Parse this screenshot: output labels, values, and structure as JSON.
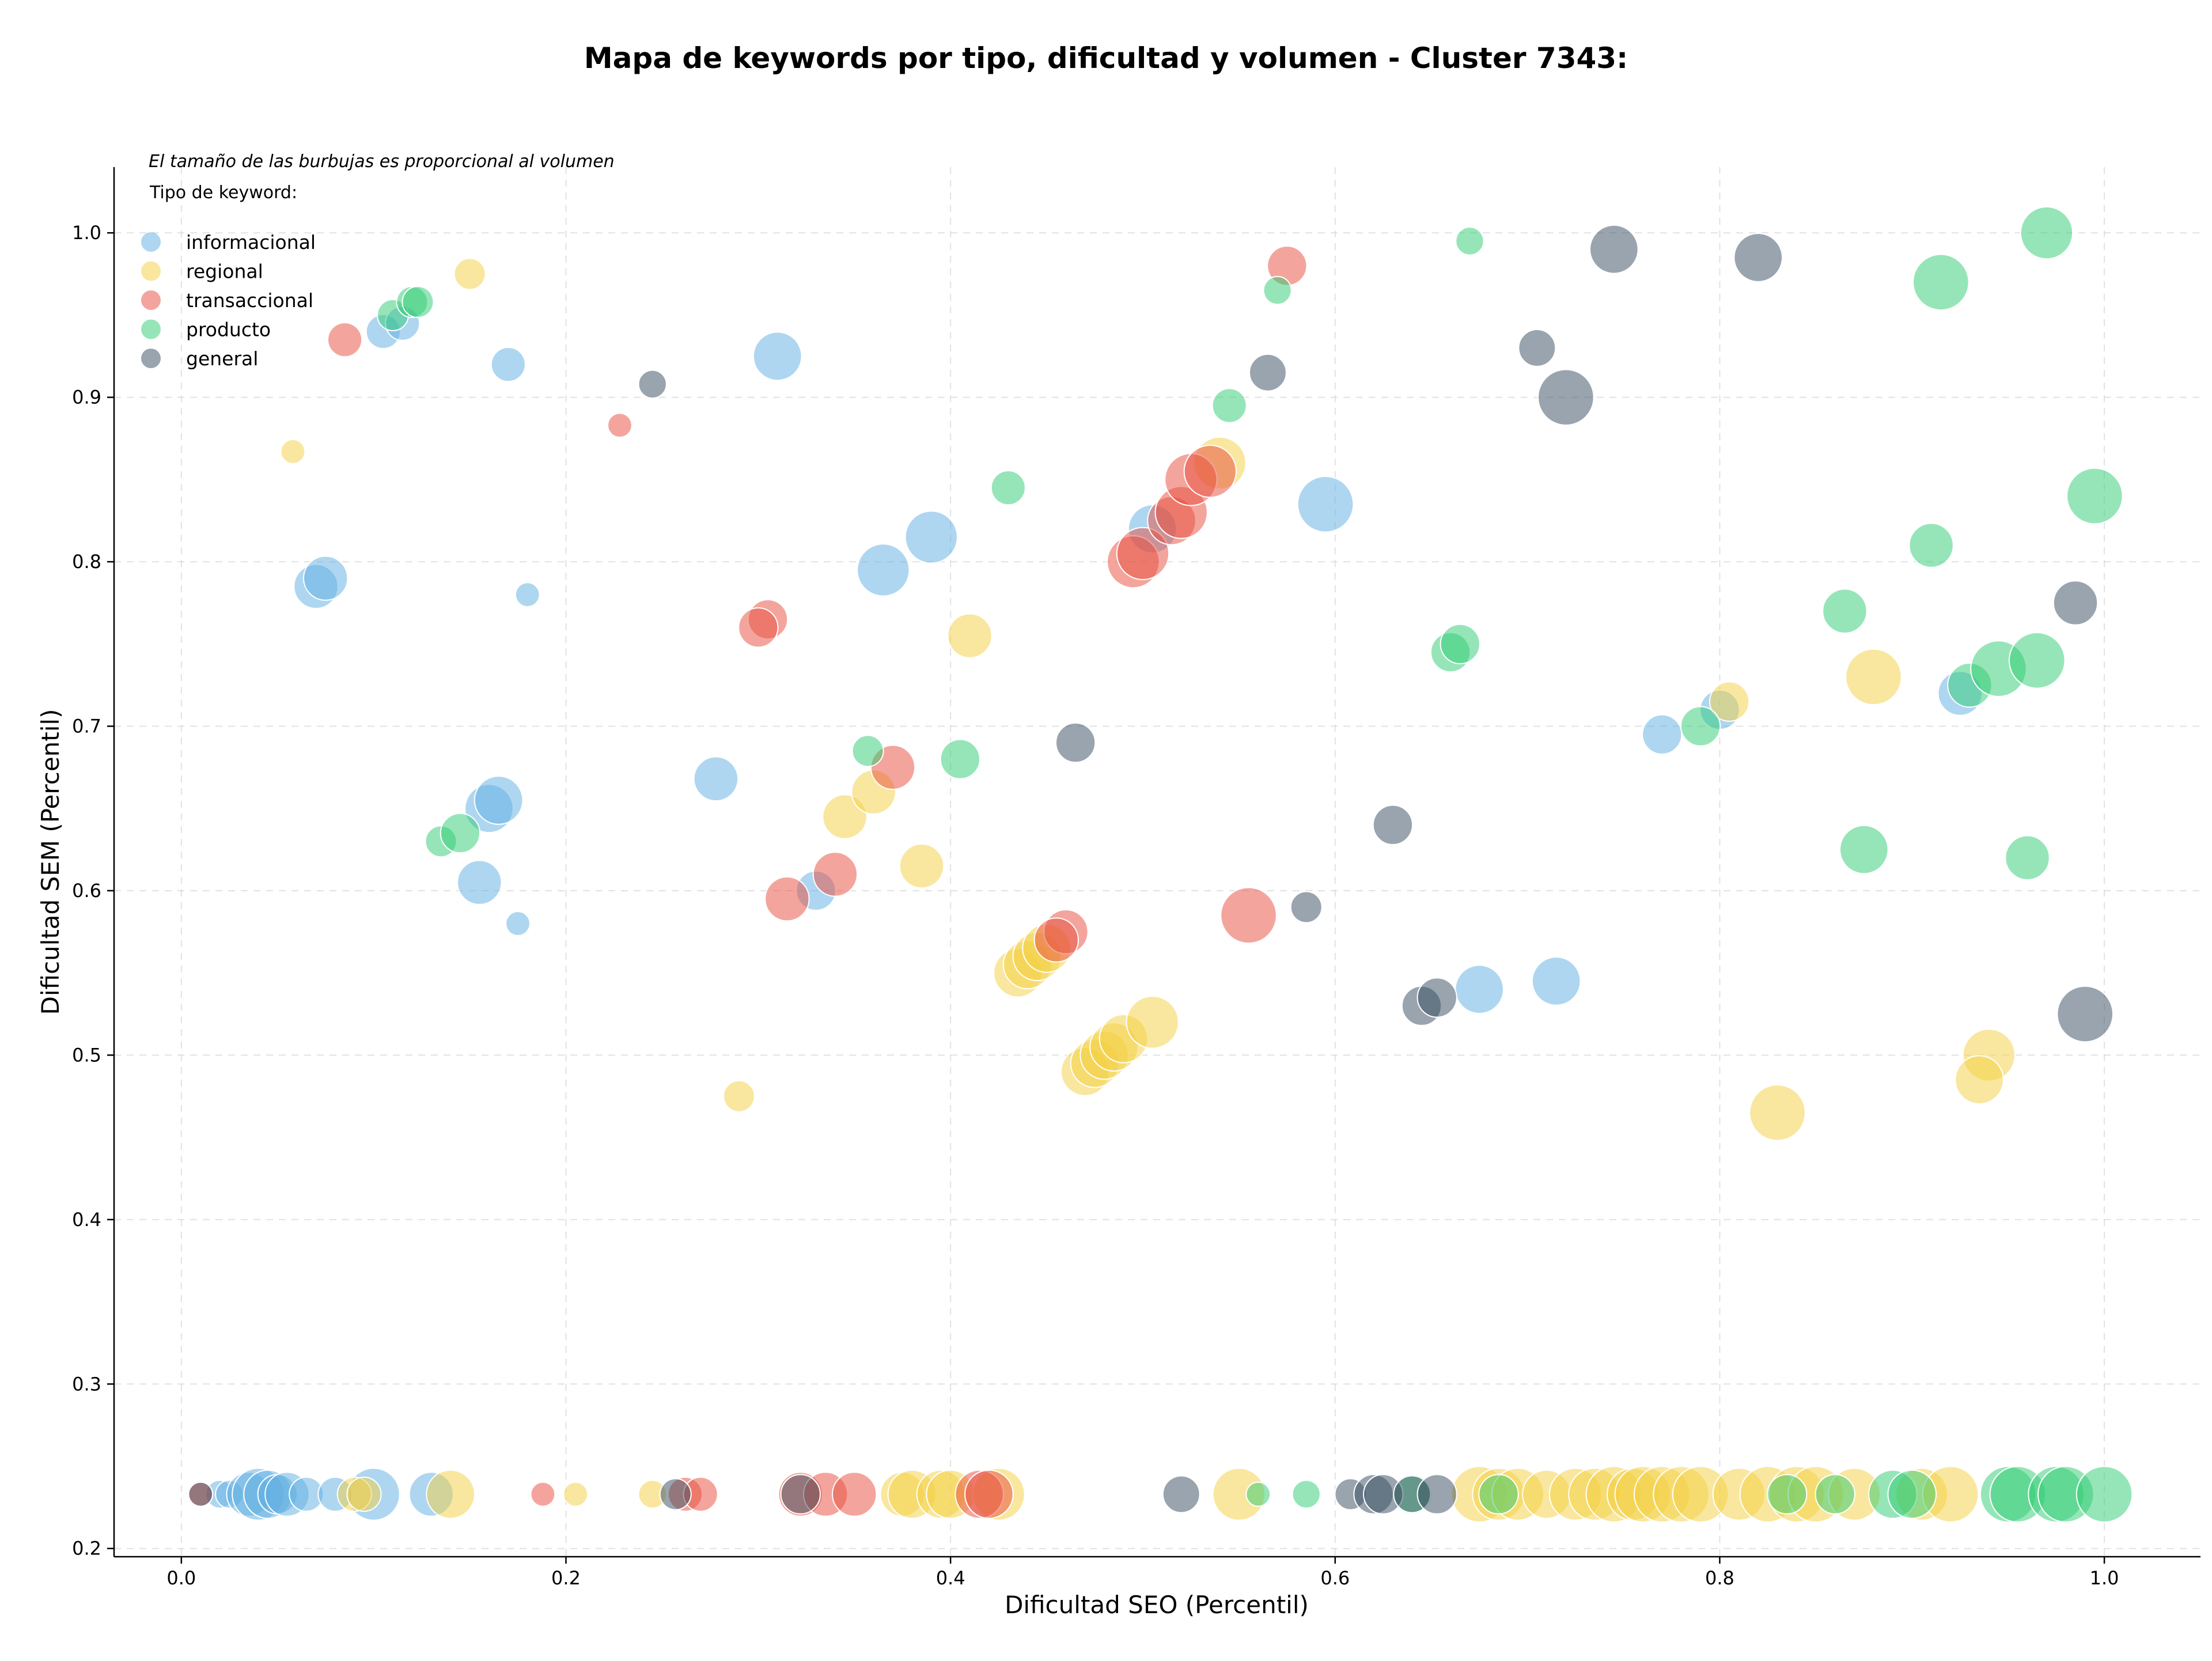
{
  "chart_data": {
    "type": "scatter",
    "title": "Mapa de keywords por tipo, dificultad y volumen - Cluster 7343:",
    "xlabel": "Dificultad SEO (Percentil)",
    "ylabel": "Dificultad SEM (Percentil)",
    "note": "El tamaño de las burbujas es proporcional al volumen",
    "legend_title": "Tipo de keyword:",
    "legend_position": "top-left",
    "xlim": [
      -0.035,
      1.05
    ],
    "ylim": [
      0.195,
      1.04
    ],
    "xticks": [
      0.0,
      0.2,
      0.4,
      0.6,
      0.8,
      1.0
    ],
    "xtick_labels": [
      "0.0",
      "0.2",
      "0.4",
      "0.6",
      "0.8",
      "1.0"
    ],
    "yticks": [
      0.2,
      0.3,
      0.4,
      0.5,
      0.6,
      0.7,
      0.8,
      0.9,
      1.0
    ],
    "ytick_labels": [
      "0.2",
      "0.3",
      "0.4",
      "0.5",
      "0.6",
      "0.7",
      "0.8",
      "0.9",
      "1.0"
    ],
    "grid": true,
    "series": [
      {
        "name": "informacional",
        "color": "#5dade2",
        "points": [
          [
            0.105,
            0.94,
            3
          ],
          [
            0.115,
            0.945,
            3
          ],
          [
            0.17,
            0.92,
            3
          ],
          [
            0.31,
            0.925,
            6
          ],
          [
            0.07,
            0.785,
            5
          ],
          [
            0.075,
            0.79,
            5
          ],
          [
            0.18,
            0.78,
            1.5
          ],
          [
            0.39,
            0.815,
            7
          ],
          [
            0.365,
            0.795,
            7
          ],
          [
            0.595,
            0.835,
            8
          ],
          [
            0.505,
            0.82,
            6
          ],
          [
            0.16,
            0.65,
            6
          ],
          [
            0.165,
            0.655,
            6
          ],
          [
            0.155,
            0.605,
            5
          ],
          [
            0.175,
            0.58,
            1.5
          ],
          [
            0.278,
            0.668,
            5
          ],
          [
            0.33,
            0.6,
            4
          ],
          [
            0.675,
            0.54,
            6
          ],
          [
            0.715,
            0.545,
            6
          ],
          [
            0.77,
            0.695,
            4
          ],
          [
            0.925,
            0.72,
            5
          ],
          [
            0.8,
            0.71,
            4
          ],
          [
            0.02,
            0.233,
            2
          ],
          [
            0.025,
            0.233,
            2
          ],
          [
            0.035,
            0.233,
            5
          ],
          [
            0.04,
            0.233,
            7
          ],
          [
            0.045,
            0.233,
            6
          ],
          [
            0.05,
            0.233,
            4
          ],
          [
            0.055,
            0.233,
            5
          ],
          [
            0.065,
            0.233,
            3
          ],
          [
            0.08,
            0.233,
            3
          ],
          [
            0.1,
            0.233,
            7
          ],
          [
            0.13,
            0.233,
            5
          ]
        ]
      },
      {
        "name": "regional",
        "color": "#f4d03f",
        "points": [
          [
            0.15,
            0.975,
            2.5
          ],
          [
            0.058,
            0.867,
            1.5
          ],
          [
            0.54,
            0.86,
            7
          ],
          [
            0.41,
            0.755,
            5
          ],
          [
            0.345,
            0.645,
            5
          ],
          [
            0.36,
            0.66,
            5
          ],
          [
            0.385,
            0.615,
            5
          ],
          [
            0.29,
            0.475,
            2.5
          ],
          [
            0.435,
            0.55,
            6
          ],
          [
            0.44,
            0.555,
            6
          ],
          [
            0.445,
            0.56,
            6
          ],
          [
            0.45,
            0.565,
            6
          ],
          [
            0.47,
            0.49,
            6
          ],
          [
            0.475,
            0.495,
            6
          ],
          [
            0.48,
            0.5,
            6
          ],
          [
            0.485,
            0.505,
            6
          ],
          [
            0.49,
            0.51,
            6
          ],
          [
            0.505,
            0.52,
            7
          ],
          [
            0.805,
            0.715,
            4
          ],
          [
            0.88,
            0.73,
            8
          ],
          [
            0.94,
            0.5,
            7
          ],
          [
            0.935,
            0.485,
            6
          ],
          [
            0.83,
            0.465,
            8
          ],
          [
            0.09,
            0.233,
            3
          ],
          [
            0.095,
            0.233,
            3
          ],
          [
            0.14,
            0.233,
            6
          ],
          [
            0.205,
            0.233,
            1.5
          ],
          [
            0.245,
            0.233,
            2
          ],
          [
            0.375,
            0.233,
            5
          ],
          [
            0.38,
            0.233,
            6
          ],
          [
            0.395,
            0.233,
            6
          ],
          [
            0.4,
            0.233,
            6
          ],
          [
            0.425,
            0.233,
            7
          ],
          [
            0.55,
            0.233,
            7
          ],
          [
            0.675,
            0.233,
            8
          ],
          [
            0.685,
            0.233,
            7
          ],
          [
            0.695,
            0.233,
            7
          ],
          [
            0.71,
            0.233,
            6
          ],
          [
            0.725,
            0.233,
            7
          ],
          [
            0.735,
            0.233,
            7
          ],
          [
            0.745,
            0.233,
            8
          ],
          [
            0.755,
            0.233,
            7
          ],
          [
            0.76,
            0.233,
            8
          ],
          [
            0.77,
            0.233,
            8
          ],
          [
            0.78,
            0.233,
            8
          ],
          [
            0.79,
            0.233,
            8
          ],
          [
            0.81,
            0.233,
            7
          ],
          [
            0.825,
            0.233,
            8
          ],
          [
            0.84,
            0.233,
            8
          ],
          [
            0.85,
            0.233,
            8
          ],
          [
            0.87,
            0.233,
            7
          ],
          [
            0.905,
            0.233,
            7
          ],
          [
            0.92,
            0.233,
            8
          ]
        ]
      },
      {
        "name": "transaccional",
        "color": "#e74c3c",
        "points": [
          [
            0.085,
            0.935,
            3
          ],
          [
            0.575,
            0.98,
            4
          ],
          [
            0.228,
            0.883,
            1.5
          ],
          [
            0.305,
            0.765,
            4
          ],
          [
            0.3,
            0.76,
            4
          ],
          [
            0.37,
            0.675,
            5
          ],
          [
            0.315,
            0.595,
            5
          ],
          [
            0.34,
            0.61,
            5
          ],
          [
            0.46,
            0.575,
            5
          ],
          [
            0.455,
            0.57,
            5
          ],
          [
            0.555,
            0.585,
            8
          ],
          [
            0.495,
            0.8,
            7
          ],
          [
            0.5,
            0.805,
            7
          ],
          [
            0.515,
            0.825,
            6
          ],
          [
            0.52,
            0.83,
            7
          ],
          [
            0.525,
            0.85,
            7
          ],
          [
            0.535,
            0.855,
            7
          ],
          [
            0.01,
            0.233,
            1.5
          ],
          [
            0.188,
            0.233,
            1.5
          ],
          [
            0.262,
            0.233,
            3
          ],
          [
            0.27,
            0.233,
            3
          ],
          [
            0.322,
            0.233,
            5
          ],
          [
            0.335,
            0.233,
            5
          ],
          [
            0.35,
            0.233,
            5
          ],
          [
            0.415,
            0.233,
            6
          ],
          [
            0.42,
            0.233,
            6
          ]
        ]
      },
      {
        "name": "producto",
        "color": "#2ecc71",
        "points": [
          [
            0.11,
            0.95,
            2.5
          ],
          [
            0.12,
            0.958,
            2.5
          ],
          [
            0.123,
            0.958,
            2.5
          ],
          [
            0.67,
            0.995,
            2
          ],
          [
            0.57,
            0.965,
            2
          ],
          [
            0.545,
            0.895,
            3
          ],
          [
            0.43,
            0.845,
            3
          ],
          [
            0.405,
            0.68,
            4
          ],
          [
            0.357,
            0.685,
            2.5
          ],
          [
            0.135,
            0.63,
            2.5
          ],
          [
            0.145,
            0.635,
            4
          ],
          [
            0.66,
            0.745,
            4
          ],
          [
            0.665,
            0.75,
            4
          ],
          [
            0.97,
            1.0,
            7
          ],
          [
            0.915,
            0.97,
            8
          ],
          [
            0.995,
            0.84,
            8
          ],
          [
            0.91,
            0.81,
            5
          ],
          [
            0.865,
            0.77,
            5
          ],
          [
            0.93,
            0.725,
            5
          ],
          [
            0.945,
            0.735,
            8
          ],
          [
            0.965,
            0.74,
            8
          ],
          [
            0.875,
            0.625,
            6
          ],
          [
            0.96,
            0.62,
            5
          ],
          [
            0.79,
            0.7,
            4
          ],
          [
            0.56,
            0.233,
            1.5
          ],
          [
            0.585,
            0.233,
            2
          ],
          [
            0.64,
            0.233,
            4
          ],
          [
            0.685,
            0.233,
            4
          ],
          [
            0.835,
            0.233,
            4
          ],
          [
            0.86,
            0.233,
            4
          ],
          [
            0.89,
            0.233,
            6
          ],
          [
            0.9,
            0.233,
            6
          ],
          [
            0.95,
            0.233,
            8
          ],
          [
            0.955,
            0.233,
            8
          ],
          [
            0.975,
            0.233,
            8
          ],
          [
            0.98,
            0.233,
            8
          ],
          [
            1.0,
            0.233,
            8
          ]
        ]
      },
      {
        "name": "general",
        "color": "#34495e",
        "points": [
          [
            0.745,
            0.99,
            6
          ],
          [
            0.82,
            0.985,
            6
          ],
          [
            0.705,
            0.93,
            3.5
          ],
          [
            0.72,
            0.9,
            8
          ],
          [
            0.565,
            0.915,
            3.5
          ],
          [
            0.245,
            0.908,
            2
          ],
          [
            0.985,
            0.775,
            5
          ],
          [
            0.465,
            0.69,
            4
          ],
          [
            0.63,
            0.64,
            4
          ],
          [
            0.585,
            0.59,
            2.5
          ],
          [
            0.645,
            0.53,
            4
          ],
          [
            0.653,
            0.535,
            4
          ],
          [
            0.99,
            0.525,
            8
          ],
          [
            0.01,
            0.233,
            1.5
          ],
          [
            0.257,
            0.233,
            2.5
          ],
          [
            0.322,
            0.233,
            4
          ],
          [
            0.52,
            0.233,
            3.5
          ],
          [
            0.608,
            0.233,
            2.5
          ],
          [
            0.62,
            0.233,
            4
          ],
          [
            0.625,
            0.233,
            4
          ],
          [
            0.64,
            0.233,
            3.5
          ],
          [
            0.653,
            0.233,
            4
          ]
        ]
      }
    ]
  }
}
